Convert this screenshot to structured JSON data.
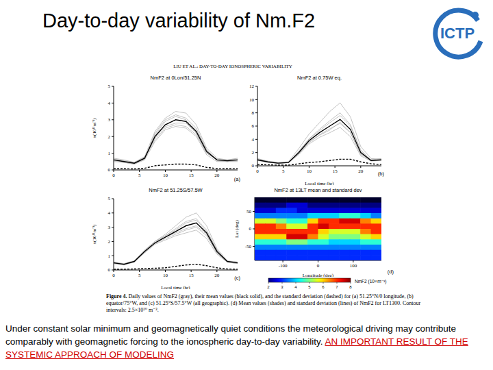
{
  "slide": {
    "title": "Day-to-day variability of Nm.F2",
    "logo": "ICTP",
    "figure_header": "LIU ET AL.: DAY-TO-DAY IONOSPHERIC VARIABILITY",
    "caption": {
      "label": "Figure 4.",
      "text": "Daily values of NmF2 (gray), their mean values (black solid), and the standard deviation (dashed) for (a) 51.25°N/0 longitude, (b) equator/75°W, and (c) 51.25°S/57.5°W (all geographic). (d) Mean values (shades) and standard deviation (lines) of NmF2 for LT1300. Contour intervals: 2.5×10¹⁰ m⁻³."
    },
    "text": "Under constant solar minimum and geomagnetically quiet conditions the meteorological driving may contribute comparably with geomagnetic forcing to the ionospheric  day-to-day variability.",
    "highlight": "AN IMPORTANT RESULT OF THE SYSTEMIC APPROACH OF MODELING"
  },
  "chart_data": [
    {
      "type": "line",
      "title": "NmF2 at 0Lon/51.25N",
      "y_label": "x(10¹¹m⁻³)",
      "annotation": "(a)",
      "grid": false,
      "x": [
        0,
        2,
        4,
        6,
        8,
        10,
        12,
        14,
        16,
        18,
        20,
        22,
        24
      ],
      "xlim": [
        0,
        24
      ],
      "xticks": [
        0,
        5,
        10,
        15,
        20
      ],
      "ylim": [
        0,
        5
      ],
      "yticks": [
        0,
        1,
        2,
        3,
        4,
        5
      ],
      "series": [
        {
          "color": "#a8a8a8",
          "values": [
            0.65,
            0.55,
            0.45,
            0.8,
            2.3,
            3.1,
            3.5,
            3.4,
            2.7,
            1.3,
            0.7,
            0.6,
            0.65
          ]
        },
        {
          "color": "#a8a8a8",
          "values": [
            0.55,
            0.45,
            0.35,
            0.6,
            1.7,
            2.4,
            2.6,
            2.5,
            2.0,
            0.9,
            0.5,
            0.5,
            0.55
          ]
        },
        {
          "color": "#a8a8a8",
          "values": [
            0.6,
            0.5,
            0.4,
            0.7,
            2.1,
            2.9,
            3.2,
            3.0,
            2.4,
            1.2,
            0.6,
            0.55,
            0.6
          ]
        },
        {
          "color": "#a8a8a8",
          "values": [
            0.7,
            0.6,
            0.45,
            0.75,
            1.9,
            2.6,
            2.8,
            2.8,
            2.2,
            1.0,
            0.65,
            0.6,
            0.7
          ]
        },
        {
          "color": "#a8a8a8",
          "values": [
            0.5,
            0.45,
            0.35,
            0.65,
            2.2,
            3.0,
            3.3,
            3.1,
            2.5,
            1.2,
            0.55,
            0.5,
            0.5
          ]
        },
        {
          "color": "#a8a8a8",
          "values": [
            0.6,
            0.5,
            0.4,
            0.7,
            1.8,
            2.5,
            2.7,
            2.6,
            2.1,
            1.0,
            0.6,
            0.5,
            0.6
          ]
        },
        {
          "color": "#000000",
          "line_style": "solid",
          "values": [
            0.6,
            0.5,
            0.4,
            0.7,
            2.0,
            2.7,
            3.0,
            2.9,
            2.3,
            1.1,
            0.6,
            0.55,
            0.6
          ]
        },
        {
          "color": "#000000",
          "line_style": "dashed",
          "values": [
            0.08,
            0.07,
            0.06,
            0.1,
            0.25,
            0.3,
            0.35,
            0.35,
            0.3,
            0.15,
            0.08,
            0.07,
            0.08
          ]
        }
      ]
    },
    {
      "type": "line",
      "title": "NmF2 at 0.75W eq.",
      "x_label": "Local time (hr)",
      "annotation": "(b)",
      "grid": false,
      "x": [
        0,
        2,
        4,
        6,
        8,
        10,
        12,
        14,
        16,
        18,
        20,
        22,
        24
      ],
      "xlim": [
        0,
        24
      ],
      "xticks": [
        0,
        5,
        10,
        15,
        20
      ],
      "ylim": [
        0,
        12
      ],
      "yticks": [
        0,
        2,
        4,
        6,
        8,
        10,
        12
      ],
      "series": [
        {
          "color": "#a8a8a8",
          "values": [
            1.0,
            0.7,
            0.5,
            0.6,
            2.6,
            4.8,
            6.5,
            8.2,
            9.5,
            7.4,
            2.9,
            1.1,
            1.0
          ]
        },
        {
          "color": "#a8a8a8",
          "values": [
            0.8,
            0.5,
            0.35,
            0.45,
            1.7,
            3.3,
            4.3,
            5.0,
            5.8,
            4.4,
            1.5,
            0.7,
            0.8
          ]
        },
        {
          "color": "#a8a8a8",
          "values": [
            0.9,
            0.6,
            0.4,
            0.5,
            2.1,
            4.0,
            5.3,
            6.5,
            7.6,
            6.0,
            2.2,
            0.8,
            0.9
          ]
        },
        {
          "color": "#a8a8a8",
          "values": [
            1.1,
            0.7,
            0.45,
            0.55,
            1.9,
            3.6,
            4.7,
            5.6,
            6.4,
            5.0,
            1.8,
            0.9,
            1.1
          ]
        },
        {
          "color": "#a8a8a8",
          "values": [
            0.85,
            0.55,
            0.4,
            0.5,
            2.2,
            4.1,
            5.5,
            6.8,
            8.0,
            6.2,
            2.4,
            0.9,
            0.85
          ]
        },
        {
          "color": "#a8a8a8",
          "values": [
            0.9,
            0.6,
            0.4,
            0.5,
            1.8,
            3.5,
            4.6,
            5.4,
            6.6,
            5.0,
            1.7,
            0.8,
            0.9
          ]
        },
        {
          "color": "#000000",
          "line_style": "solid",
          "values": [
            0.9,
            0.6,
            0.4,
            0.5,
            2.0,
            3.8,
            5.0,
            6.0,
            7.0,
            5.5,
            2.0,
            0.8,
            0.9
          ]
        },
        {
          "color": "#000000",
          "line_style": "dashed",
          "values": [
            0.2,
            0.15,
            0.1,
            0.1,
            0.3,
            0.5,
            0.6,
            0.8,
            1.0,
            1.0,
            0.6,
            0.3,
            0.2
          ]
        }
      ]
    },
    {
      "type": "line",
      "title": "NmF2 at 51.25S/57.5W",
      "x_label": "Local time (hr)",
      "y_label": "x(10¹¹m⁻³)",
      "annotation": "(c)",
      "grid": false,
      "x": [
        0,
        2,
        4,
        6,
        8,
        10,
        12,
        14,
        16,
        18,
        20,
        22,
        24
      ],
      "xlim": [
        0,
        24
      ],
      "xticks": [
        0,
        5,
        10,
        15,
        20
      ],
      "ylim": [
        0,
        5
      ],
      "yticks": [
        0,
        1,
        2,
        3,
        4,
        5
      ],
      "series": [
        {
          "color": "#a8a8a8",
          "values": [
            0.55,
            0.45,
            0.65,
            1.4,
            2.0,
            2.5,
            3.1,
            3.7,
            4.0,
            3.1,
            1.5,
            0.65,
            0.55
          ]
        },
        {
          "color": "#a8a8a8",
          "values": [
            0.45,
            0.35,
            0.55,
            1.2,
            1.8,
            2.1,
            2.4,
            2.6,
            2.8,
            2.2,
            1.1,
            0.55,
            0.45
          ]
        },
        {
          "color": "#a8a8a8",
          "values": [
            0.5,
            0.4,
            0.6,
            1.3,
            1.9,
            2.4,
            2.9,
            3.4,
            3.6,
            2.8,
            1.4,
            0.6,
            0.5
          ]
        },
        {
          "color": "#a8a8a8",
          "values": [
            0.5,
            0.4,
            0.6,
            1.25,
            1.85,
            2.2,
            2.5,
            2.8,
            3.0,
            2.4,
            1.2,
            0.6,
            0.5
          ]
        },
        {
          "color": "#a8a8a8",
          "values": [
            0.55,
            0.4,
            0.6,
            1.35,
            2.0,
            2.4,
            2.8,
            3.3,
            3.5,
            2.7,
            1.4,
            0.6,
            0.55
          ]
        },
        {
          "color": "#a8a8a8",
          "values": [
            0.45,
            0.4,
            0.55,
            1.3,
            1.9,
            2.3,
            2.6,
            2.9,
            3.1,
            2.5,
            1.2,
            0.55,
            0.45
          ]
        },
        {
          "color": "#000000",
          "line_style": "solid",
          "values": [
            0.5,
            0.4,
            0.6,
            1.3,
            1.9,
            2.3,
            2.7,
            3.1,
            3.3,
            2.6,
            1.3,
            0.6,
            0.5
          ]
        },
        {
          "color": "#000000",
          "line_style": "dashed",
          "values": [
            0.05,
            0.05,
            0.07,
            0.1,
            0.12,
            0.15,
            0.25,
            0.35,
            0.4,
            0.3,
            0.15,
            0.07,
            0.05
          ]
        }
      ]
    },
    {
      "type": "heatmap",
      "title": "NmF2 at 13LT mean and standard dev",
      "x_label": "Longitude (deg)",
      "y_label": "Lat (deg)",
      "annotation": "(d)",
      "x": [
        -165,
        -135,
        -105,
        -75,
        -45,
        -15,
        15,
        45,
        75,
        105,
        135,
        165
      ],
      "y": [
        82.5,
        67.5,
        52.5,
        37.5,
        22.5,
        7.5,
        -7.5,
        -22.5,
        -37.5,
        -52.5,
        -67.5,
        -82.5
      ],
      "xlim": [
        -180,
        180
      ],
      "xticks": [
        -100,
        0,
        100
      ],
      "ylim": [
        -90,
        90
      ],
      "yticks": [
        -50,
        0,
        50
      ],
      "cells": [
        [
          1.5,
          1.5,
          1.5,
          1.5,
          1.5,
          1.5,
          1.5,
          1.5,
          1.5,
          1.5,
          1.5,
          1.5
        ],
        [
          2,
          2,
          2,
          2.5,
          2.5,
          2,
          2,
          2,
          2,
          2,
          2,
          2
        ],
        [
          2.5,
          2.5,
          3,
          3,
          2.5,
          2.5,
          2.5,
          2.5,
          2.5,
          2.5,
          2.5,
          2.5
        ],
        [
          3.5,
          3.5,
          3.5,
          3.5,
          3.5,
          4,
          4,
          4,
          4.5,
          4.5,
          4,
          3.5
        ],
        [
          5.5,
          5.5,
          5,
          4.5,
          4.5,
          6,
          7,
          7,
          7.5,
          7.5,
          6.5,
          6
        ],
        [
          7,
          7,
          6.5,
          5.5,
          5.5,
          7,
          7.5,
          7,
          7,
          7,
          7,
          7
        ],
        [
          7,
          7,
          7,
          7,
          7,
          7,
          6,
          5.5,
          5.5,
          5.5,
          6.5,
          7
        ],
        [
          6,
          6,
          6,
          7.5,
          7.5,
          6.5,
          5.5,
          5,
          5,
          5,
          5.5,
          6
        ],
        [
          4.5,
          4.5,
          4.5,
          5,
          5,
          4.5,
          4.5,
          4,
          4,
          4,
          4.5,
          4.5
        ],
        [
          3.5,
          3.5,
          3.5,
          3.5,
          3.5,
          3.5,
          3.5,
          3.5,
          3.5,
          3.5,
          3.5,
          3.5
        ],
        [
          3,
          3,
          3,
          3,
          3,
          3,
          3,
          3,
          3,
          3,
          3,
          3
        ],
        [
          3,
          3,
          3,
          3,
          3,
          3,
          3,
          3,
          3,
          3,
          3,
          3
        ]
      ],
      "colorbar": {
        "range": [
          2,
          8
        ],
        "ticks": [
          2,
          3,
          4,
          5,
          6,
          7,
          8
        ],
        "label": "NmF2 (10¹¹m⁻³)"
      }
    }
  ]
}
